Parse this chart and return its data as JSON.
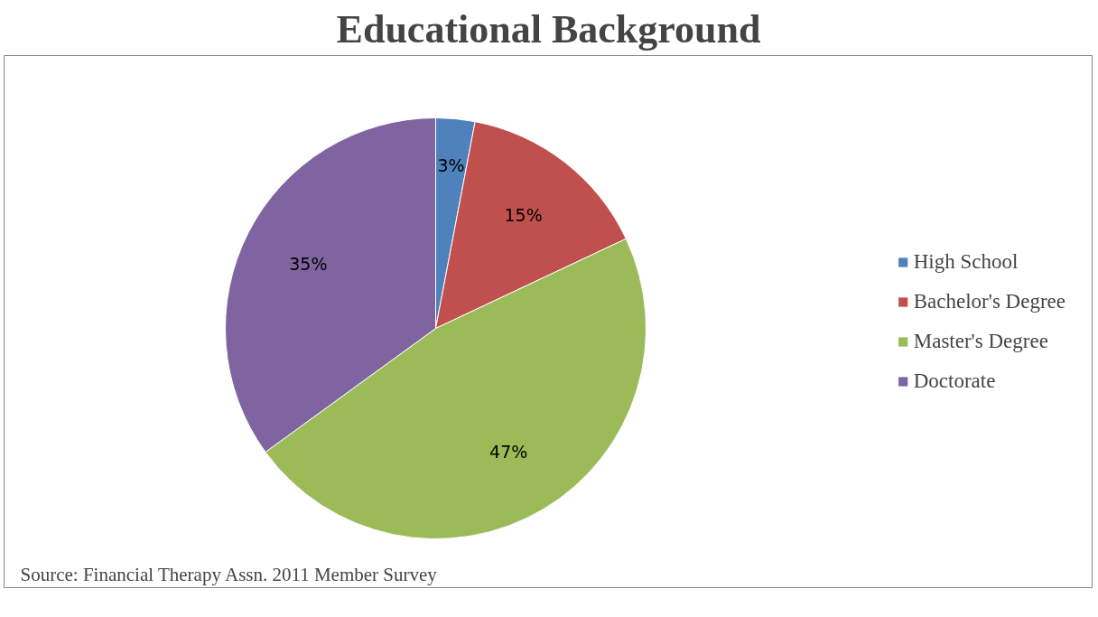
{
  "chart_data": {
    "type": "pie",
    "title": "Educational Background",
    "categories": [
      "High School",
      "Bachelor's Degree",
      "Master's Degree",
      "Doctorate"
    ],
    "values": [
      3,
      15,
      47,
      35
    ],
    "colors": [
      "#4f81bd",
      "#c0504d",
      "#9bbb59",
      "#8064a2"
    ],
    "value_labels": [
      "3%",
      "15%",
      "47%",
      "35%"
    ],
    "legend": "right",
    "annotations": [
      "Source:  Financial Therapy Assn. 2011 Member Survey"
    ]
  }
}
